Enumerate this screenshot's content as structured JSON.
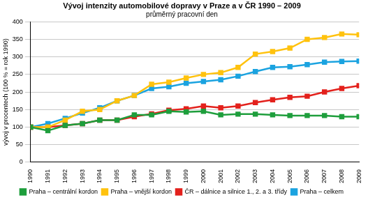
{
  "chart_data": {
    "type": "line",
    "title": "Vývoj intenzity automobilové dopravy v Praze a v ČR 1990 – 2009",
    "subtitle": "průměrný pracovní den",
    "y_label": "vývoj v procentech (100 % = rok 1990)",
    "categories": [
      "1990",
      "1991",
      "1992",
      "1993",
      "1994",
      "1995",
      "1996",
      "1997",
      "1998",
      "1999",
      "2000",
      "2001",
      "2002",
      "2003",
      "2004",
      "2005",
      "2006",
      "2007",
      "2008",
      "2009"
    ],
    "series": [
      {
        "name": "Praha – centrální kordon",
        "color": "#1e9e3c",
        "marker": "square",
        "values": [
          100,
          90,
          105,
          110,
          120,
          120,
          135,
          135,
          145,
          143,
          145,
          135,
          137,
          137,
          135,
          133,
          133,
          133,
          130,
          130
        ]
      },
      {
        "name": "Praha – vnější kordon",
        "color": "#ffc20e",
        "marker": "square",
        "values": [
          100,
          100,
          120,
          145,
          150,
          175,
          190,
          222,
          228,
          240,
          250,
          255,
          270,
          308,
          315,
          325,
          350,
          355,
          365,
          363
        ]
      },
      {
        "name": "ČR – dálnice a silnice 1., 2. a 3. třídy",
        "color": "#e3211c",
        "marker": "square",
        "values": [
          100,
          100,
          105,
          110,
          120,
          120,
          130,
          138,
          148,
          152,
          160,
          155,
          160,
          170,
          178,
          185,
          188,
          200,
          210,
          218
        ]
      },
      {
        "name": "Praha – celkem",
        "color": "#1ba3e0",
        "marker": "square",
        "values": [
          100,
          110,
          125,
          140,
          155,
          175,
          190,
          210,
          215,
          225,
          230,
          235,
          245,
          258,
          270,
          272,
          278,
          285,
          287,
          288
        ]
      }
    ],
    "ylim": [
      0,
      400
    ],
    "yticks": [
      0,
      50,
      100,
      150,
      200,
      250,
      300,
      350,
      400
    ],
    "grid": true,
    "legend": "bottom"
  }
}
